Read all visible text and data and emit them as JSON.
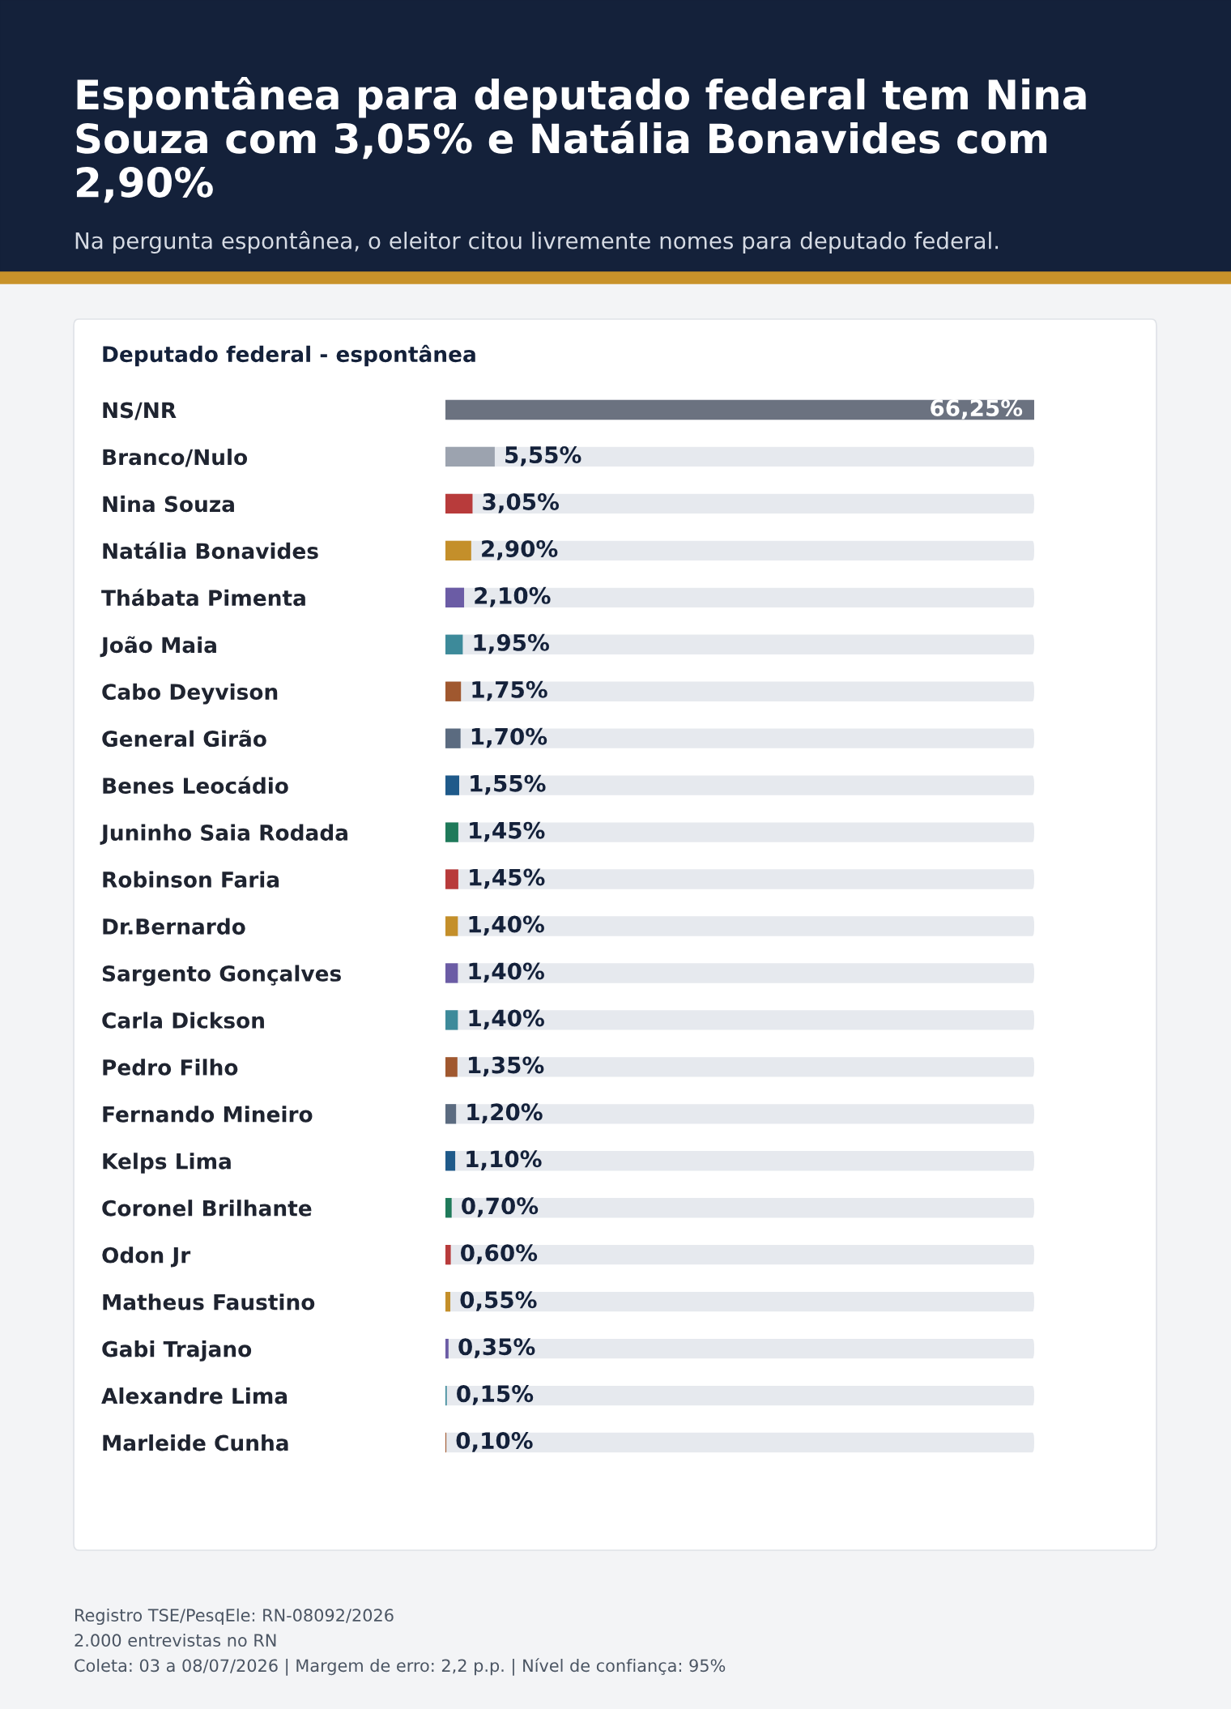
{
  "chart_data": {
    "type": "bar",
    "orientation": "horizontal",
    "title": "Espontânea para deputado federal tem Nina Souza com 3,05% e Natália Bonavides com 2,90%",
    "subtitle": "Na pergunta espontânea, o eleitor citou livremente nomes para deputado federal.",
    "ylabel": "Deputado federal - espontânea",
    "categories": [
      "NS/NR",
      "Branco/Nulo",
      "Nina Souza",
      "Natália Bonavides",
      "Thábata Pimenta",
      "João Maia",
      "Cabo Deyvison",
      "General Girão",
      "Benes Leocádio",
      "Juninho Saia Rodada",
      "Robinson Faria",
      "Dr.Bernardo",
      "Sargento Gonçalves",
      "Carla Dickson",
      "Pedro Filho",
      "Fernando Mineiro",
      "Kelps Lima",
      "Coronel Brilhante",
      "Odon Jr",
      "Matheus Faustino",
      "Gabi Trajano",
      "Alexandre Lima",
      "Marleide Cunha"
    ],
    "values": [
      66.25,
      5.55,
      3.05,
      2.9,
      2.1,
      1.95,
      1.75,
      1.7,
      1.55,
      1.45,
      1.45,
      1.4,
      1.4,
      1.4,
      1.35,
      1.2,
      1.1,
      0.7,
      0.6,
      0.55,
      0.35,
      0.15,
      0.1
    ],
    "value_labels": [
      "66,25%",
      "5,55%",
      "3,05%",
      "2,90%",
      "2,10%",
      "1,95%",
      "1,75%",
      "1,70%",
      "1,55%",
      "1,45%",
      "1,45%",
      "1,40%",
      "1,40%",
      "1,40%",
      "1,35%",
      "1,20%",
      "1,10%",
      "0,70%",
      "0,60%",
      "0,55%",
      "0,35%",
      "0,15%",
      "0,10%"
    ],
    "colors": [
      "#6b7280",
      "#9ca3af",
      "#b83b3b",
      "#c48f2a",
      "#6b5ca5",
      "#3d8a9a",
      "#a0582f",
      "#5b6b80",
      "#1f5a8a",
      "#1f7a5a",
      "#b83b3b",
      "#c48f2a",
      "#6b5ca5",
      "#3d8a9a",
      "#a0582f",
      "#5b6b80",
      "#1f5a8a",
      "#1f7a5a",
      "#b83b3b",
      "#c48f2a",
      "#6b5ca5",
      "#3d8a9a",
      "#a0582f"
    ],
    "tick_labels": "y",
    "grid": false,
    "annotations": [
      "Registro TSE/PesqEle: RN-08092/2026",
      "2.000 entrevistas no RN",
      "Coleta: 03 a 08/07/2026 | Margem de erro: 2,2 p.p. | Nível de confiança: 95%"
    ]
  }
}
